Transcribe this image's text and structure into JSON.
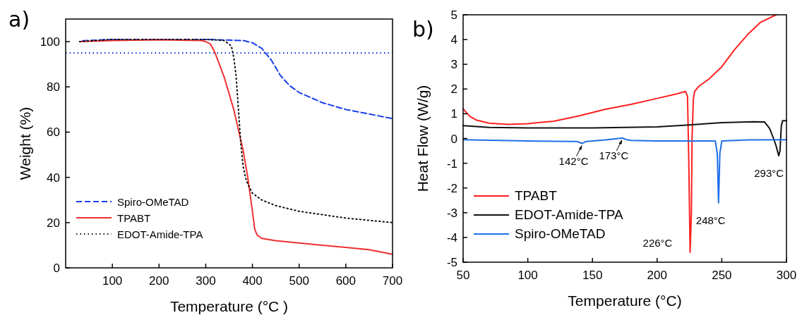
{
  "chart_data": [
    {
      "type": "line",
      "title": "a)",
      "xlabel": "Temperature (°C )",
      "ylabel": "Weight (%)",
      "xlim": [
        0,
        700
      ],
      "xticks": [
        100,
        200,
        300,
        400,
        500,
        600,
        700
      ],
      "ylim": [
        0,
        110
      ],
      "yticks": [
        0,
        20,
        40,
        60,
        80,
        100
      ],
      "grid": false,
      "legend": "bottom left",
      "marker": "none",
      "ref_lines": [
        {
          "axis": "y",
          "value": 95,
          "color": "#1a3ee8",
          "line_style": "dotted"
        }
      ],
      "series": [
        {
          "name": "Spiro-OMeTAD",
          "color": "#1a3ee8",
          "line_style": "dashed",
          "x": [
            36,
            100,
            200,
            300,
            380,
            400,
            420,
            440,
            460,
            480,
            500,
            550,
            600,
            650,
            700
          ],
          "values": [
            100.4,
            101,
            101,
            101,
            100.5,
            99.5,
            97,
            92,
            85,
            80.5,
            77.5,
            73,
            70,
            68,
            66
          ]
        },
        {
          "name": "TPABT",
          "color": "#f03030",
          "line_style": "solid",
          "x": [
            30,
            100,
            200,
            290,
            300,
            310,
            320,
            340,
            360,
            380,
            390,
            400,
            405,
            410,
            420,
            450,
            500,
            550,
            600,
            650,
            700
          ],
          "values": [
            100,
            100.5,
            100.8,
            100.5,
            100,
            99,
            95,
            84,
            70,
            52,
            40,
            25,
            17,
            14.5,
            13,
            12,
            11,
            10,
            9,
            8,
            6
          ]
        },
        {
          "name": "EDOT-Amide-TPA",
          "color": "#111111",
          "line_style": "dotted",
          "x": [
            30,
            100,
            200,
            300,
            340,
            355,
            360,
            365,
            370,
            375,
            380,
            385,
            390,
            400,
            420,
            450,
            500,
            550,
            600,
            650,
            700
          ],
          "values": [
            100,
            101,
            101,
            101,
            100.5,
            98,
            93,
            85,
            70,
            55,
            45,
            40,
            37,
            33,
            30,
            27.5,
            25,
            23.5,
            22,
            21,
            20
          ]
        }
      ]
    },
    {
      "type": "line",
      "title": "b)",
      "xlabel": "Temperature (°C)",
      "ylabel": "Heat Flow (W/g)",
      "xlim": [
        50,
        300
      ],
      "xticks": [
        50,
        100,
        150,
        200,
        250,
        300
      ],
      "ylim": [
        -5,
        5
      ],
      "yticks": [
        -5,
        -4,
        -3,
        -2,
        -1,
        0,
        1,
        2,
        3,
        4,
        5
      ],
      "grid": false,
      "legend": "bottom left",
      "marker": "none",
      "annotations": [
        {
          "text": "142°C",
          "x": 142,
          "y": -0.2
        },
        {
          "text": "173°C",
          "x": 173,
          "y": 0.02
        },
        {
          "text": "226°C",
          "x": 226,
          "y": -4.6
        },
        {
          "text": "248°C",
          "x": 248,
          "y": -2.6
        },
        {
          "text": "293°C",
          "x": 293,
          "y": -0.7
        }
      ],
      "series": [
        {
          "name": "TPABT",
          "color": "#ff2020",
          "line_style": "solid",
          "x": [
            50,
            55,
            60,
            70,
            85,
            100,
            120,
            140,
            160,
            180,
            200,
            215,
            222,
            223.5,
            224.5,
            225.5,
            226.5,
            227,
            228,
            229,
            232,
            240,
            250,
            260,
            270,
            280,
            292
          ],
          "values": [
            1.2,
            0.9,
            0.75,
            0.62,
            0.57,
            0.6,
            0.7,
            0.92,
            1.18,
            1.38,
            1.62,
            1.8,
            1.9,
            1.7,
            -1,
            -4.6,
            -3,
            0,
            1.6,
            1.9,
            2.1,
            2.4,
            2.9,
            3.6,
            4.2,
            4.7,
            5
          ]
        },
        {
          "name": "EDOT-Amide-TPA",
          "color": "#111111",
          "line_style": "solid",
          "x": [
            50,
            70,
            100,
            150,
            200,
            225,
            250,
            275,
            283,
            287,
            290,
            292,
            294,
            295,
            296,
            297,
            300
          ],
          "values": [
            0.52,
            0.45,
            0.43,
            0.43,
            0.47,
            0.55,
            0.64,
            0.68,
            0.67,
            0.4,
            0,
            -0.3,
            -0.7,
            -0.5,
            0.5,
            0.72,
            0.72
          ]
        },
        {
          "name": "Spiro-OMeTAD",
          "color": "#1f6fe8",
          "line_style": "solid",
          "x": [
            50,
            100,
            138,
            142,
            145,
            160,
            170,
            173,
            176,
            180,
            200,
            245,
            246.5,
            247.5,
            248.5,
            250,
            270,
            300
          ],
          "values": [
            -0.05,
            -0.1,
            -0.12,
            -0.2,
            -0.12,
            -0.06,
            0,
            0.02,
            -0.04,
            -0.08,
            -0.1,
            -0.1,
            -0.6,
            -2.6,
            -0.6,
            -0.1,
            -0.06,
            -0.05
          ]
        }
      ]
    }
  ]
}
